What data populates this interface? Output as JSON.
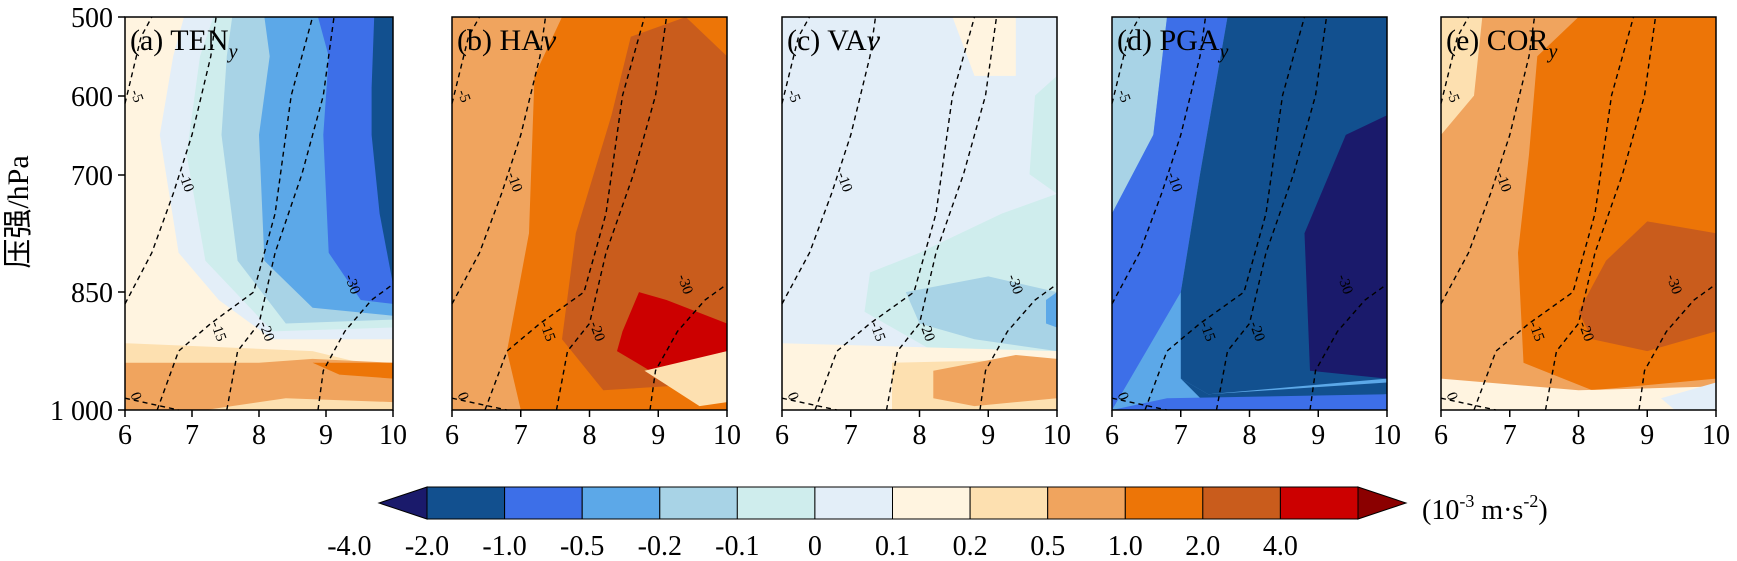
{
  "chart_data": {
    "type": "heatmap",
    "ylabel": "压强/hPa",
    "y_ticks": [
      "500",
      "600",
      "700",
      "850",
      "1 000"
    ],
    "y_values": [
      500,
      600,
      700,
      850,
      1000
    ],
    "x_ticks": [
      "6",
      "7",
      "8",
      "9",
      "10"
    ],
    "x_values": [
      6,
      7,
      8,
      9,
      10
    ],
    "xlim": [
      6,
      10
    ],
    "ylim": [
      1000,
      500
    ],
    "y_scale": "log",
    "contour_levels": [
      0,
      -5,
      -10,
      -15,
      -20,
      -30
    ],
    "colorbar": {
      "ticks": [
        "-4.0",
        "-2.0",
        "-1.0",
        "-0.5",
        "-0.2",
        "-0.1",
        "0",
        "0.1",
        "0.2",
        "0.5",
        "1.0",
        "2.0",
        "4.0"
      ],
      "colors": [
        "#1a1a6b",
        "#12508f",
        "#3d6fe8",
        "#5ca8e8",
        "#a8d3e6",
        "#cfeded",
        "#e3eef8",
        "#fff4e0",
        "#fde0b0",
        "#f0a45e",
        "#ed7507",
        "#c95c1c",
        "#cc0000",
        "#8b0000"
      ],
      "unit_label": "(10",
      "unit_exp": "-3",
      "unit_mid": " m·s",
      "unit_exp2": "-2",
      "unit_end": ")"
    },
    "panels": [
      {
        "label_main": "(a) TEN",
        "label_sub": "y",
        "label_italic": "",
        "bg": "#fff4e0"
      },
      {
        "label_main": "(b) HA",
        "label_sub": "",
        "label_italic": "v",
        "bg": "#f0a45e"
      },
      {
        "label_main": "(c) VA",
        "label_sub": "",
        "label_italic": "v",
        "bg": "#e3eef8"
      },
      {
        "label_main": "(d) PGA",
        "label_sub": "y",
        "label_italic": "",
        "bg": "#5ca8e8"
      },
      {
        "label_main": "(e) COR",
        "label_sub": "y",
        "label_italic": "",
        "bg": "#f0a45e"
      }
    ]
  }
}
